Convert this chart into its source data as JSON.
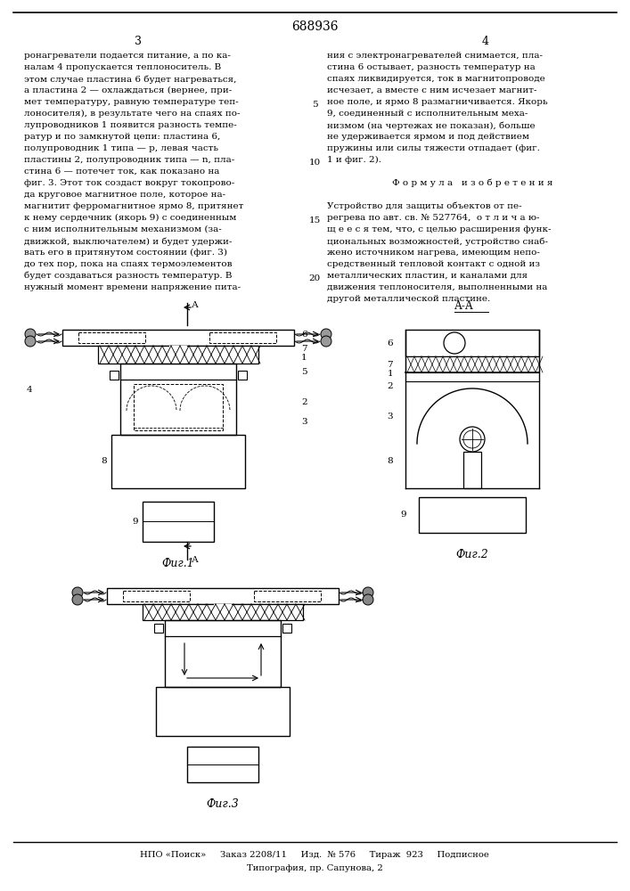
{
  "patent_number": "688936",
  "page_left": "3",
  "page_right": "4",
  "col1_lines": [
    "ронагреватели подается питание, а по ка-",
    "налам 4 пропускается теплоноситель. В",
    "этом случае пластина 6 будет нагреваться,",
    "а пластина 2 — охлаждаться (вернее, при-",
    "мет температуру, равную температуре теп-",
    "лоносителя), в результате чего на спаях по-",
    "лупроводников 1 появится разность темпе-",
    "ратур и по замкнутой цепи: пластина 6,",
    "полупроводник 1 типа — p, левая часть",
    "пластины 2, полупроводник типа — n, пла-",
    "стина 6 — потечет ток, как показано на",
    "фиг. 3. Этот ток создаст вокруг токопрово-",
    "да круговое магнитное поле, которое на-",
    "магнитит ферромагнитное ярмо 8, притянет",
    "к нему сердечник (якорь 9) с соединенным",
    "с ним исполнительным механизмом (за-",
    "движкой, выключателем) и будет удержи-",
    "вать его в притянутом состоянии (фиг. 3)",
    "до тех пор, пока на спаях термоэлементов",
    "будет создаваться разность температур. В",
    "нужный момент времени напряжение пита-"
  ],
  "col2_lines": [
    "ния с электронагревателей снимается, пла-",
    "стина 6 остывает, разность температур на",
    "спаях ликвидируется, ток в магнитопроводе",
    "исчезает, а вместе с ним исчезает магнит-",
    "ное поле, и ярмо 8 размагничивается. Якорь",
    "9, соединенный с исполнительным меха-",
    "низмом (на чертежах не показан), больше",
    "не удерживается ярмом и под действием",
    "пружины или силы тяжести отпадает (фиг.",
    "1 и фиг. 2).",
    "",
    "Ф о р м у л а   и з о б р е т е н и я",
    "",
    "Устройство для защиты объектов от пе-",
    "регрева по авт. св. № 527764,  о т л и ч а ю-",
    "щ е е с я тем, что, с целью расширения функ-",
    "циональных возможностей, устройство снаб-",
    "жено источником нагрева, имеющим непо-",
    "средственный тепловой контакт с одной из",
    "металлических пластин, и каналами для",
    "движения теплоносителя, выполненными на",
    "другой металлической пластине."
  ],
  "fig1_caption": "Фиг.1",
  "fig2_caption": "Фиг.2",
  "fig3_caption": "Фиг.3",
  "footer": "НПО «Поиск»     Заказ 2208/11     Изд.  № 576     Тираж  923     Подписное",
  "footer2": "Типография, пр. Сапунова, 2",
  "bg_color": "#ffffff"
}
